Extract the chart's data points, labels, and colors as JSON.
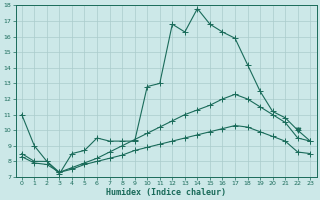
{
  "title": "",
  "xlabel": "Humidex (Indice chaleur)",
  "ylabel": "",
  "xlim": [
    -0.5,
    23.5
  ],
  "ylim": [
    7,
    18
  ],
  "yticks": [
    7,
    8,
    9,
    10,
    11,
    12,
    13,
    14,
    15,
    16,
    17,
    18
  ],
  "xticks": [
    0,
    1,
    2,
    3,
    4,
    5,
    6,
    7,
    8,
    9,
    10,
    11,
    12,
    13,
    14,
    15,
    16,
    17,
    18,
    19,
    20,
    21,
    22,
    23
  ],
  "bg_color": "#cce8e8",
  "grid_color": "#aacccc",
  "line_color": "#1a6b5a",
  "line1": [
    11.0,
    9.0,
    8.0,
    7.2,
    8.5,
    8.7,
    9.5,
    9.3,
    9.3,
    9.3,
    12.8,
    13.0,
    16.8,
    16.3,
    17.8,
    16.8,
    16.3,
    15.9,
    14.2,
    12.5,
    11.2,
    10.8,
    10.0,
    9.3
  ],
  "line2": [
    8.5,
    8.0,
    8.0,
    7.3,
    7.6,
    7.9,
    8.2,
    8.6,
    9.0,
    9.4,
    9.8,
    10.2,
    10.6,
    11.0,
    11.3,
    11.6,
    12.0,
    12.3,
    12.0,
    11.5,
    11.0,
    10.5,
    9.5,
    9.3
  ],
  "line3": [
    8.3,
    7.9,
    7.8,
    7.3,
    7.5,
    7.8,
    8.0,
    8.2,
    8.4,
    8.7,
    8.9,
    9.1,
    9.3,
    9.5,
    9.7,
    9.9,
    10.1,
    10.3,
    10.2,
    9.9,
    9.6,
    9.3,
    8.6,
    8.5
  ],
  "marker_size": 3,
  "linewidth": 0.8
}
